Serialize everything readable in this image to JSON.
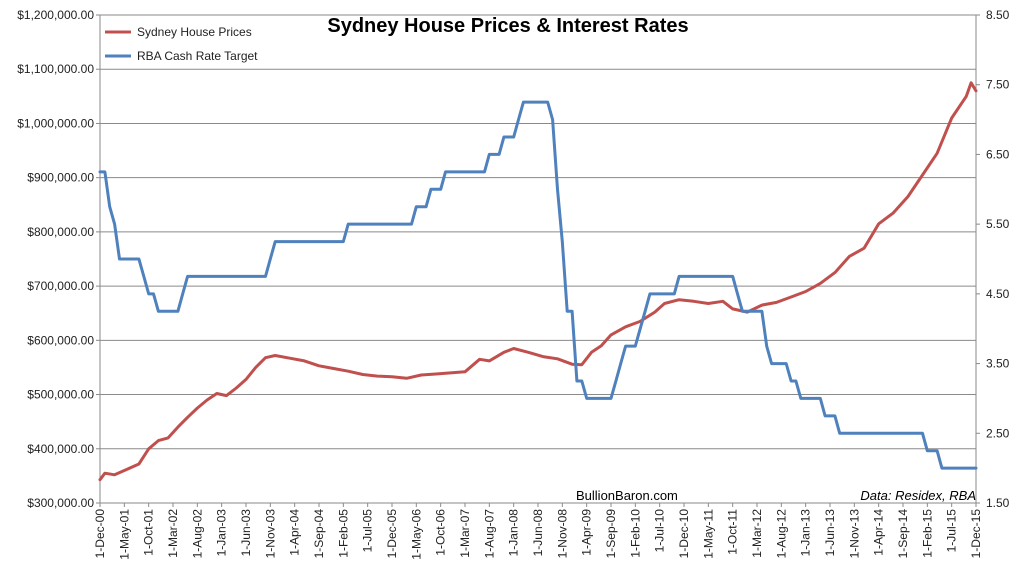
{
  "chart_data": {
    "type": "line",
    "title": "Sydney House Prices & Interest Rates",
    "watermark": "BullionBaron.com",
    "source_note": "Data: Residex, RBA",
    "y_left": {
      "min": 300000,
      "max": 1200000,
      "ticks": [
        300000,
        400000,
        500000,
        600000,
        700000,
        800000,
        900000,
        1000000,
        1100000,
        1200000
      ],
      "tick_labels": [
        "$300,000.00",
        "$400,000.00",
        "$500,000.00",
        "$600,000.00",
        "$700,000.00",
        "$800,000.00",
        "$900,000.00",
        "$1,000,000.00",
        "$1,100,000.00",
        "$1,200,000.00"
      ]
    },
    "y_right": {
      "min": 1.5,
      "max": 8.5,
      "ticks": [
        1.5,
        2.5,
        3.5,
        4.5,
        5.5,
        6.5,
        7.5,
        8.5
      ],
      "tick_labels": [
        "1.50",
        "2.50",
        "3.50",
        "4.50",
        "5.50",
        "6.50",
        "7.50",
        "8.50"
      ]
    },
    "x": {
      "start": "2000-12",
      "end": "2015-12",
      "tick_labels": [
        "1-Dec-00",
        "1-May-01",
        "1-Oct-01",
        "1-Mar-02",
        "1-Aug-02",
        "1-Jan-03",
        "1-Jun-03",
        "1-Nov-03",
        "1-Apr-04",
        "1-Sep-04",
        "1-Feb-05",
        "1-Jul-05",
        "1-Dec-05",
        "1-May-06",
        "1-Oct-06",
        "1-Mar-07",
        "1-Aug-07",
        "1-Jan-08",
        "1-Jun-08",
        "1-Nov-08",
        "1-Apr-09",
        "1-Sep-09",
        "1-Feb-10",
        "1-Jul-10",
        "1-Dec-10",
        "1-May-11",
        "1-Oct-11",
        "1-Mar-12",
        "1-Aug-12",
        "1-Jan-13",
        "1-Jun-13",
        "1-Nov-13",
        "1-Apr-14",
        "1-Sep-14",
        "1-Feb-15",
        "1-Jul-15",
        "1-Dec-15"
      ]
    },
    "grid": "horizontal",
    "legend": "top-left",
    "series": [
      {
        "name": "Sydney House Prices",
        "axis": "left",
        "color": "#C0504D",
        "points": [
          [
            "2000-12",
            343000
          ],
          [
            "2001-01",
            355000
          ],
          [
            "2001-03",
            352000
          ],
          [
            "2001-05",
            360000
          ],
          [
            "2001-08",
            372000
          ],
          [
            "2001-10",
            400000
          ],
          [
            "2001-12",
            415000
          ],
          [
            "2002-02",
            420000
          ],
          [
            "2002-04",
            440000
          ],
          [
            "2002-06",
            458000
          ],
          [
            "2002-08",
            475000
          ],
          [
            "2002-10",
            490000
          ],
          [
            "2002-12",
            502000
          ],
          [
            "2003-02",
            498000
          ],
          [
            "2003-04",
            512000
          ],
          [
            "2003-06",
            528000
          ],
          [
            "2003-08",
            550000
          ],
          [
            "2003-10",
            568000
          ],
          [
            "2003-12",
            572000
          ],
          [
            "2004-03",
            567000
          ],
          [
            "2004-06",
            562000
          ],
          [
            "2004-09",
            553000
          ],
          [
            "2004-12",
            548000
          ],
          [
            "2005-03",
            543000
          ],
          [
            "2005-06",
            537000
          ],
          [
            "2005-09",
            534000
          ],
          [
            "2005-12",
            533000
          ],
          [
            "2006-03",
            530000
          ],
          [
            "2006-06",
            536000
          ],
          [
            "2006-09",
            538000
          ],
          [
            "2006-12",
            540000
          ],
          [
            "2007-03",
            542000
          ],
          [
            "2007-06",
            565000
          ],
          [
            "2007-08",
            562000
          ],
          [
            "2007-11",
            578000
          ],
          [
            "2008-01",
            585000
          ],
          [
            "2008-04",
            578000
          ],
          [
            "2008-07",
            570000
          ],
          [
            "2008-10",
            566000
          ],
          [
            "2009-01",
            556000
          ],
          [
            "2009-03",
            555000
          ],
          [
            "2009-05",
            578000
          ],
          [
            "2009-07",
            590000
          ],
          [
            "2009-09",
            610000
          ],
          [
            "2009-12",
            625000
          ],
          [
            "2010-03",
            635000
          ],
          [
            "2010-06",
            652000
          ],
          [
            "2010-08",
            668000
          ],
          [
            "2010-11",
            675000
          ],
          [
            "2011-02",
            672000
          ],
          [
            "2011-05",
            668000
          ],
          [
            "2011-08",
            672000
          ],
          [
            "2011-10",
            658000
          ],
          [
            "2012-01",
            652000
          ],
          [
            "2012-04",
            665000
          ],
          [
            "2012-07",
            670000
          ],
          [
            "2012-10",
            680000
          ],
          [
            "2013-01",
            690000
          ],
          [
            "2013-04",
            705000
          ],
          [
            "2013-07",
            725000
          ],
          [
            "2013-10",
            755000
          ],
          [
            "2014-01",
            770000
          ],
          [
            "2014-04",
            815000
          ],
          [
            "2014-07",
            835000
          ],
          [
            "2014-10",
            865000
          ],
          [
            "2015-01",
            905000
          ],
          [
            "2015-04",
            945000
          ],
          [
            "2015-07",
            1010000
          ],
          [
            "2015-10",
            1050000
          ],
          [
            "2015-11",
            1075000
          ],
          [
            "2015-12",
            1060000
          ]
        ]
      },
      {
        "name": "RBA Cash Rate Target",
        "axis": "right",
        "color": "#4F81BD",
        "points": [
          [
            "2000-12",
            6.25
          ],
          [
            "2001-01",
            6.25
          ],
          [
            "2001-02",
            5.75
          ],
          [
            "2001-03",
            5.5
          ],
          [
            "2001-04",
            5.0
          ],
          [
            "2001-08",
            5.0
          ],
          [
            "2001-09",
            4.75
          ],
          [
            "2001-10",
            4.5
          ],
          [
            "2001-11",
            4.5
          ],
          [
            "2001-12",
            4.25
          ],
          [
            "2002-04",
            4.25
          ],
          [
            "2002-05",
            4.5
          ],
          [
            "2002-06",
            4.75
          ],
          [
            "2003-10",
            4.75
          ],
          [
            "2003-11",
            5.0
          ],
          [
            "2003-12",
            5.25
          ],
          [
            "2005-02",
            5.25
          ],
          [
            "2005-03",
            5.5
          ],
          [
            "2006-04",
            5.5
          ],
          [
            "2006-05",
            5.75
          ],
          [
            "2006-07",
            5.75
          ],
          [
            "2006-08",
            6.0
          ],
          [
            "2006-10",
            6.0
          ],
          [
            "2006-11",
            6.25
          ],
          [
            "2007-07",
            6.25
          ],
          [
            "2007-08",
            6.5
          ],
          [
            "2007-10",
            6.5
          ],
          [
            "2007-11",
            6.75
          ],
          [
            "2008-01",
            6.75
          ],
          [
            "2008-02",
            7.0
          ],
          [
            "2008-03",
            7.25
          ],
          [
            "2008-08",
            7.25
          ],
          [
            "2008-09",
            7.0
          ],
          [
            "2008-10",
            6.0
          ],
          [
            "2008-11",
            5.25
          ],
          [
            "2008-12",
            4.25
          ],
          [
            "2009-01",
            4.25
          ],
          [
            "2009-02",
            3.25
          ],
          [
            "2009-03",
            3.25
          ],
          [
            "2009-04",
            3.0
          ],
          [
            "2009-09",
            3.0
          ],
          [
            "2009-10",
            3.25
          ],
          [
            "2009-11",
            3.5
          ],
          [
            "2009-12",
            3.75
          ],
          [
            "2010-02",
            3.75
          ],
          [
            "2010-03",
            4.0
          ],
          [
            "2010-04",
            4.25
          ],
          [
            "2010-05",
            4.5
          ],
          [
            "2010-10",
            4.5
          ],
          [
            "2010-11",
            4.75
          ],
          [
            "2011-10",
            4.75
          ],
          [
            "2011-11",
            4.5
          ],
          [
            "2011-12",
            4.25
          ],
          [
            "2012-04",
            4.25
          ],
          [
            "2012-05",
            3.75
          ],
          [
            "2012-06",
            3.5
          ],
          [
            "2012-09",
            3.5
          ],
          [
            "2012-10",
            3.25
          ],
          [
            "2012-11",
            3.25
          ],
          [
            "2012-12",
            3.0
          ],
          [
            "2013-04",
            3.0
          ],
          [
            "2013-05",
            2.75
          ],
          [
            "2013-07",
            2.75
          ],
          [
            "2013-08",
            2.5
          ],
          [
            "2015-01",
            2.5
          ],
          [
            "2015-02",
            2.25
          ],
          [
            "2015-04",
            2.25
          ],
          [
            "2015-05",
            2.0
          ],
          [
            "2015-12",
            2.0
          ]
        ]
      }
    ]
  }
}
